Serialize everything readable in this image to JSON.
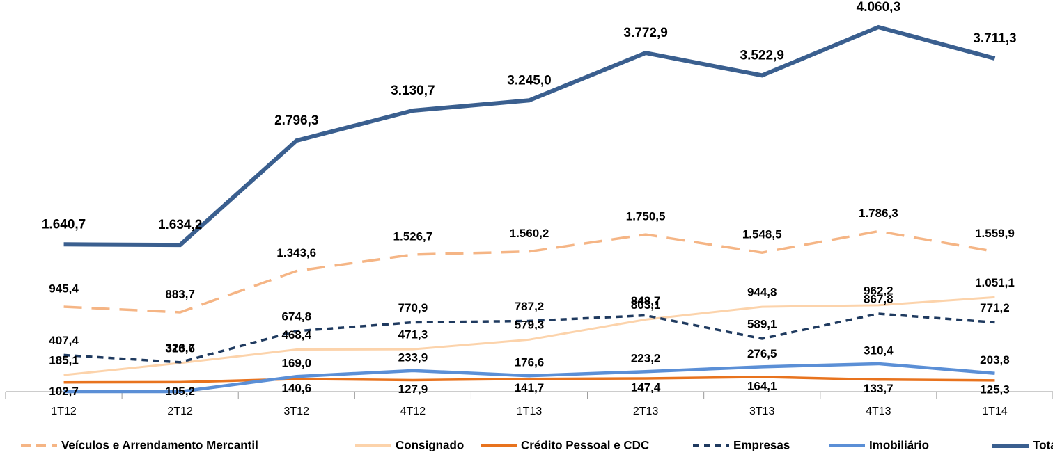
{
  "chart_data": {
    "type": "line",
    "categories": [
      "1T12",
      "2T12",
      "3T12",
      "4T12",
      "1T13",
      "2T13",
      "3T13",
      "4T13",
      "1T14"
    ],
    "ylim": [
      0,
      4200
    ],
    "series": [
      {
        "name": "Veículos e Arrendamento Mercantil",
        "color": "#f5b585",
        "dash": "long",
        "values": [
          945.4,
          883.7,
          1343.6,
          1526.7,
          1560.2,
          1750.5,
          1548.5,
          1786.3,
          1559.9
        ],
        "value_labels": [
          "945,4",
          "883,7",
          "1.343,6",
          "1.526,7",
          "1.560,2",
          "1.750,5",
          "1.548,5",
          "1.786,3",
          "1.559,9"
        ]
      },
      {
        "name": "Consignado",
        "color": "#fcd3ab",
        "dash": "solid",
        "values": [
          185.1,
          318.6,
          468.4,
          471.3,
          579.3,
          803.1,
          944.8,
          962.2,
          1051.1
        ],
        "value_labels": [
          "185,1",
          "318,6",
          "468,4",
          "471,3",
          "579,3",
          "803,1",
          "944,8",
          "962,2",
          "1.051,1"
        ]
      },
      {
        "name": "Crédito Pessoal e CDC",
        "color": "#e8731e",
        "dash": "solid",
        "values": [
          102.7,
          105.2,
          140.6,
          127.9,
          141.7,
          147.4,
          164.1,
          133.7,
          125.3
        ],
        "value_labels": [
          "102,7",
          "105,2",
          "140,6",
          "127,9",
          "141,7",
          "147,4",
          "164,1",
          "133,7",
          "125,3"
        ]
      },
      {
        "name": "Empresas",
        "color": "#1f3a5f",
        "dash": "short",
        "values": [
          407.4,
          326.7,
          674.8,
          770.9,
          787.2,
          848.7,
          589.1,
          867.8,
          771.2
        ],
        "value_labels": [
          "407,4",
          "326,7",
          "674,8",
          "770,9",
          "787,2",
          "848,7",
          "589,1",
          "867,8",
          "771,2"
        ]
      },
      {
        "name": "Imobiliário",
        "color": "#5b8fd6",
        "dash": "solid",
        "values": [
          0,
          0,
          169.0,
          233.9,
          176.6,
          223.2,
          276.5,
          310.4,
          203.8
        ],
        "value_labels": [
          null,
          null,
          "169,0",
          "233,9",
          "176,6",
          "223,2",
          "276,5",
          "310,4",
          "203,8"
        ]
      },
      {
        "name": "Total",
        "color": "#3a5f8f",
        "dash": "solid",
        "values": [
          1640.7,
          1634.2,
          2796.3,
          3130.7,
          3245.0,
          3772.9,
          3522.9,
          4060.3,
          3711.3
        ],
        "value_labels": [
          "1.640,7",
          "1.634,2",
          "2.796,3",
          "3.130,7",
          "3.245,0",
          "3.772,9",
          "3.522,9",
          "4.060,3",
          "3.711,3"
        ]
      }
    ]
  }
}
